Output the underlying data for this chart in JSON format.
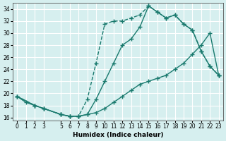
{
  "xlabel": "Humidex (Indice chaleur)",
  "bg_color": "#d6efef",
  "grid_color": "#ffffff",
  "line_color": "#1a7a6e",
  "xlim": [
    -0.5,
    23.5
  ],
  "ylim": [
    15.5,
    35
  ],
  "xticks": [
    0,
    1,
    2,
    3,
    5,
    6,
    7,
    8,
    9,
    10,
    11,
    12,
    13,
    14,
    15,
    16,
    17,
    18,
    19,
    20,
    21,
    22,
    23
  ],
  "yticks": [
    16,
    18,
    20,
    22,
    24,
    26,
    28,
    30,
    32,
    34
  ],
  "line1_x": [
    0,
    1,
    2,
    3,
    5,
    6,
    7,
    8,
    9,
    10,
    11,
    12,
    13,
    14,
    15,
    16,
    17,
    18,
    19,
    20,
    21,
    22,
    23
  ],
  "line1_y": [
    19.5,
    18.5,
    18.0,
    17.5,
    16.5,
    16.2,
    16.2,
    16.5,
    19.0,
    22.0,
    25.0,
    28.0,
    29.0,
    31.0,
    34.5,
    33.5,
    32.5,
    33.0,
    31.5,
    30.5,
    27.0,
    24.5,
    23.0
  ],
  "line2_x": [
    0,
    2,
    3,
    5,
    6,
    7,
    8,
    9,
    10,
    11,
    12,
    13,
    14,
    15,
    16,
    17,
    18,
    19,
    20,
    21,
    22,
    23
  ],
  "line2_y": [
    19.5,
    18.0,
    17.5,
    16.5,
    16.2,
    16.2,
    19.0,
    25.0,
    31.5,
    32.0,
    32.0,
    32.5,
    33.0,
    34.5,
    33.5,
    32.5,
    33.0,
    31.5,
    30.5,
    27.0,
    24.5,
    23.0
  ],
  "line3_x": [
    0,
    2,
    3,
    5,
    6,
    7,
    8,
    9,
    10,
    11,
    12,
    13,
    14,
    15,
    16,
    17,
    18,
    19,
    20,
    21,
    22,
    23
  ],
  "line3_y": [
    19.5,
    18.0,
    17.5,
    16.5,
    16.2,
    16.2,
    16.5,
    16.8,
    17.5,
    18.5,
    19.5,
    20.5,
    21.5,
    22.0,
    22.5,
    23.0,
    24.0,
    25.0,
    26.5,
    28.0,
    30.0,
    23.0
  ]
}
